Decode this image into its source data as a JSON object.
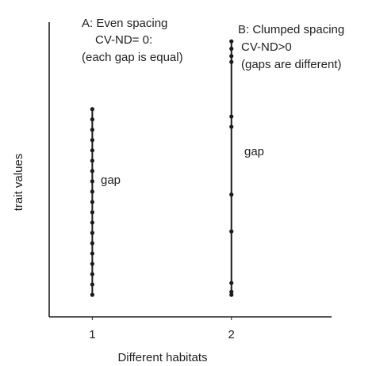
{
  "chart_data": {
    "type": "scatter",
    "xlabel": "Different habitats",
    "ylabel": "trait  values",
    "xlim": [
      0.69,
      2.72
    ],
    "xticks": [
      1,
      2
    ],
    "ylim": [
      0,
      100
    ],
    "annotations": [
      "A: Even spacing",
      "CV-ND= 0:",
      "(each gap is equal)",
      "B: Clumped spacing",
      "CV-ND>0",
      "(gaps are different)",
      "gap",
      "gap"
    ],
    "series": [
      {
        "color": "#1a1a1a",
        "x": [
          1,
          1,
          1,
          1,
          1,
          1,
          1,
          1,
          1,
          1,
          1,
          1,
          1,
          1,
          1,
          1,
          1,
          1,
          1
        ],
        "values": [
          7.5,
          11,
          14.5,
          18,
          21.5,
          25,
          28.5,
          32,
          35.5,
          39,
          42.5,
          46,
          49.5,
          53,
          56.5,
          60,
          63.5,
          67,
          70.5
        ]
      },
      {
        "color": "#1a1a1a",
        "x": [
          2,
          2,
          2,
          2,
          2,
          2,
          2,
          2,
          2,
          2,
          2
        ],
        "values": [
          93.5,
          91,
          88.5,
          86.5,
          68,
          64.5,
          41.5,
          29,
          11.5,
          8.5,
          7.5
        ]
      }
    ]
  }
}
